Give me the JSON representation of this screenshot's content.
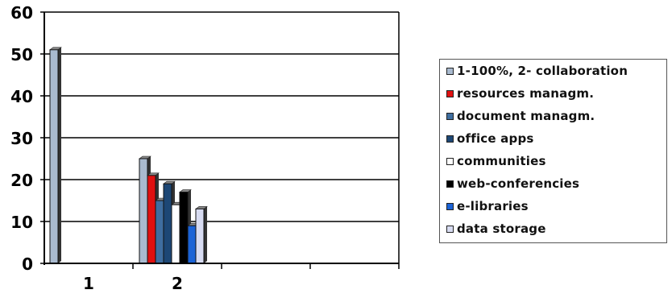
{
  "chart_data": {
    "type": "bar",
    "categories": [
      "1",
      "2"
    ],
    "extra_slots": 2,
    "ylim": [
      0,
      60
    ],
    "yticks": [
      0,
      10,
      20,
      30,
      40,
      50,
      60
    ],
    "grid": true,
    "legend_position": "right",
    "series": [
      {
        "name": "1-100%, 2- collaboration",
        "values": [
          51,
          25
        ],
        "color": "#a9bacf"
      },
      {
        "name": "resources managm.",
        "values": [
          0,
          21
        ],
        "color": "#e01010"
      },
      {
        "name": "document managm.",
        "values": [
          0,
          15
        ],
        "color": "#3f6ea0"
      },
      {
        "name": "office apps",
        "values": [
          0,
          19
        ],
        "color": "#1d4775"
      },
      {
        "name": "communities",
        "values": [
          0,
          14
        ],
        "color": "#ffffff"
      },
      {
        "name": "web-conferencies",
        "values": [
          0,
          17
        ],
        "color": "#000000"
      },
      {
        "name": "e-libraries",
        "values": [
          0,
          9
        ],
        "color": "#1b63d6"
      },
      {
        "name": "data storage",
        "values": [
          0,
          13
        ],
        "color": "#d8dcf2"
      }
    ]
  }
}
